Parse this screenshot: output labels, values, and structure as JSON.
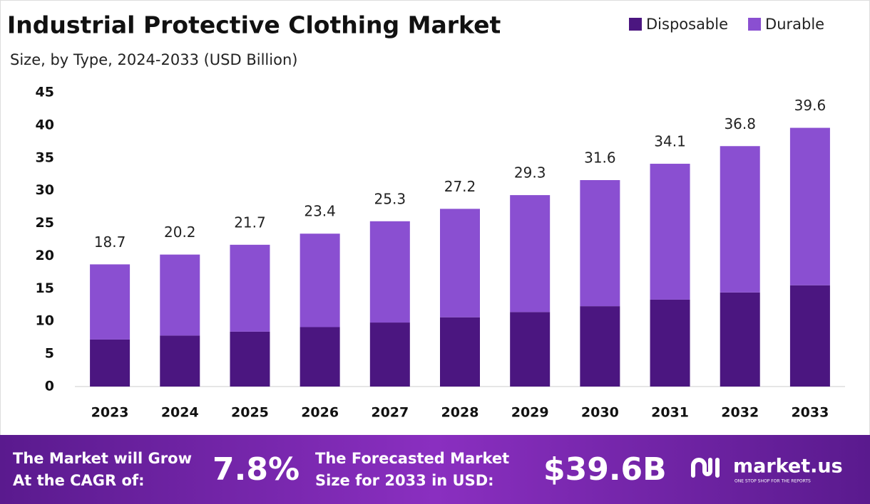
{
  "chart_data": {
    "type": "stacked_bar",
    "title": "Industrial Protective Clothing Market",
    "subtitle": "Size, by Type, 2024-2033 (USD Billion)",
    "categories": [
      "2023",
      "2024",
      "2025",
      "2026",
      "2027",
      "2028",
      "2029",
      "2030",
      "2031",
      "2032",
      "2033"
    ],
    "series": [
      {
        "name": "Disposable",
        "color": "#4b1680",
        "values": [
          7.2,
          7.8,
          8.4,
          9.1,
          9.8,
          10.6,
          11.4,
          12.3,
          13.3,
          14.4,
          15.5
        ]
      },
      {
        "name": "Durable",
        "color": "#8a4fd1",
        "values": [
          11.5,
          12.4,
          13.3,
          14.3,
          15.5,
          16.6,
          17.9,
          19.3,
          20.8,
          22.4,
          24.1
        ]
      }
    ],
    "totals": [
      18.7,
      20.2,
      21.7,
      23.4,
      25.3,
      27.2,
      29.3,
      31.6,
      34.1,
      36.8,
      39.6
    ],
    "ylim": [
      0,
      45
    ],
    "yticks": [
      0,
      5,
      10,
      15,
      20,
      25,
      30,
      35,
      40,
      45
    ],
    "grid": false,
    "legend": "top-right"
  },
  "footer": {
    "cagr_text": [
      "The Market will Grow",
      "At the CAGR of:"
    ],
    "cagr": "7.8%",
    "forecast_text": [
      "The Forecasted Market",
      "Size for 2033 in USD:"
    ],
    "forecast": "$39.6B",
    "brand": "market.us",
    "tagline": "ONE STOP SHOP FOR THE REPORTS"
  }
}
